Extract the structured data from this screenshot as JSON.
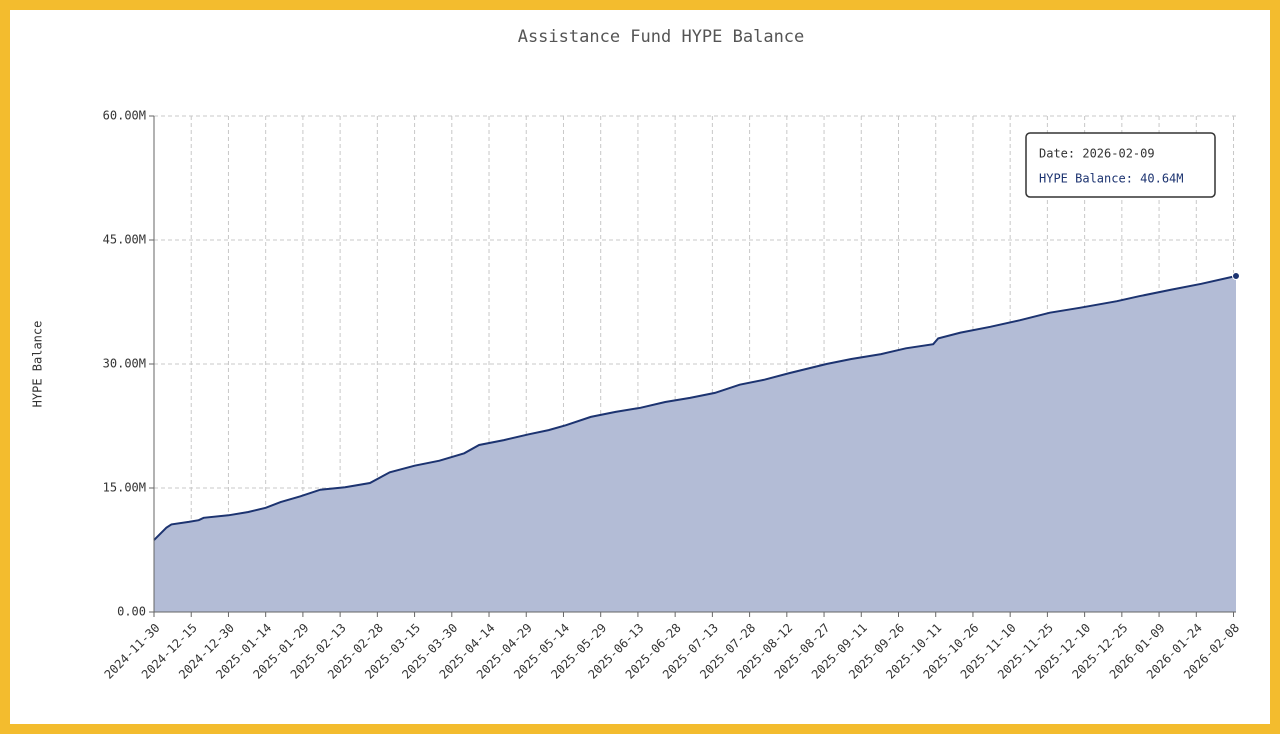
{
  "chart_data": {
    "type": "area",
    "title": "Assistance Fund HYPE Balance",
    "y_label": "HYPE Balance",
    "color": "#1c3370",
    "fill_color": "#b3bcd6",
    "grid": true,
    "x": [
      "2024-11-30",
      "2024-12-02",
      "2024-12-05",
      "2024-12-07",
      "2024-12-14",
      "2024-12-18",
      "2024-12-20",
      "2024-12-30",
      "2025-01-07",
      "2025-01-14",
      "2025-01-20",
      "2025-01-28",
      "2025-02-05",
      "2025-02-15",
      "2025-02-25",
      "2025-03-05",
      "2025-03-15",
      "2025-03-25",
      "2025-04-04",
      "2025-04-10",
      "2025-04-20",
      "2025-04-30",
      "2025-05-08",
      "2025-05-15",
      "2025-05-25",
      "2025-06-04",
      "2025-06-14",
      "2025-06-24",
      "2025-07-04",
      "2025-07-14",
      "2025-07-24",
      "2025-08-03",
      "2025-08-13",
      "2025-08-28",
      "2025-09-07",
      "2025-09-19",
      "2025-09-29",
      "2025-10-10",
      "2025-10-12",
      "2025-10-21",
      "2025-11-02",
      "2025-11-14",
      "2025-11-26",
      "2025-12-08",
      "2025-12-23",
      "2026-01-01",
      "2026-01-14",
      "2026-01-26",
      "2026-02-09"
    ],
    "values": [
      8.7,
      9.3,
      10.2,
      10.6,
      10.9,
      11.1,
      11.4,
      11.7,
      12.1,
      12.6,
      13.3,
      14.0,
      14.8,
      15.1,
      15.6,
      16.9,
      17.7,
      18.3,
      19.2,
      20.2,
      20.8,
      21.5,
      22.0,
      22.6,
      23.6,
      24.2,
      24.7,
      25.4,
      25.9,
      26.5,
      27.5,
      28.1,
      28.9,
      30.0,
      30.6,
      31.2,
      31.9,
      32.4,
      33.1,
      33.8,
      34.5,
      35.3,
      36.2,
      36.8,
      37.6,
      38.2,
      39.0,
      39.7,
      40.64
    ],
    "xlim": [
      "2024-11-30",
      "2026-02-09"
    ],
    "xticks": [
      "2024-11-30",
      "2024-12-15",
      "2024-12-30",
      "2025-01-14",
      "2025-01-29",
      "2025-02-13",
      "2025-02-28",
      "2025-03-15",
      "2025-03-30",
      "2025-04-14",
      "2025-04-29",
      "2025-05-14",
      "2025-05-29",
      "2025-06-13",
      "2025-06-28",
      "2025-07-13",
      "2025-07-28",
      "2025-08-12",
      "2025-08-27",
      "2025-09-11",
      "2025-09-26",
      "2025-10-11",
      "2025-10-26",
      "2025-11-10",
      "2025-11-25",
      "2025-12-10",
      "2025-12-25",
      "2026-01-09",
      "2026-01-24",
      "2026-02-08"
    ],
    "ylim": [
      0,
      60
    ],
    "yticks": [
      {
        "value": 0,
        "label": "0.00"
      },
      {
        "value": 15,
        "label": "15.00M"
      },
      {
        "value": 30,
        "label": "30.00M"
      },
      {
        "value": 45,
        "label": "45.00M"
      },
      {
        "value": 60,
        "label": "60.00M"
      }
    ],
    "tooltip": [
      "Date: 2026-02-09",
      "HYPE Balance: 40.64M"
    ]
  }
}
